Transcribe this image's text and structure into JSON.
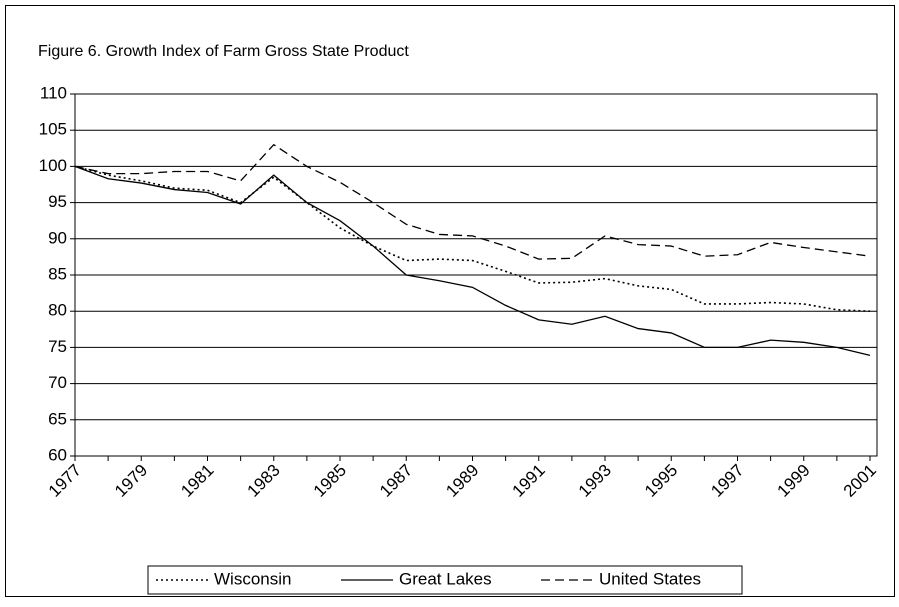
{
  "chart_data": {
    "type": "line",
    "title": "Figure 6.  Growth Index of Farm Gross State Product",
    "categories": [
      "1977",
      null,
      "1979",
      null,
      "1981",
      null,
      "1983",
      null,
      "1985",
      null,
      "1987",
      null,
      "1989",
      null,
      "1991",
      null,
      "1993",
      null,
      "1995",
      null,
      "1997",
      null,
      "1999",
      null,
      "2001"
    ],
    "series": [
      {
        "name": "Wisconsin",
        "color": "#000000",
        "style": "dotted",
        "values": [
          100,
          98.8,
          98,
          97,
          96.7,
          95,
          98.5,
          95,
          91.5,
          89,
          87,
          87.2,
          87,
          85.5,
          83.9,
          84,
          84.5,
          83.5,
          83,
          81,
          81,
          81.2,
          81,
          80.2,
          80
        ]
      },
      {
        "name": "Great Lakes",
        "color": "#000000",
        "style": "solid",
        "values": [
          100,
          98.3,
          97.7,
          96.8,
          96.4,
          94.8,
          98.8,
          95,
          92.5,
          89,
          85,
          84.2,
          83.3,
          80.8,
          78.8,
          78.2,
          79.3,
          77.6,
          77,
          75,
          75,
          76,
          75.7,
          75,
          73.9
        ]
      },
      {
        "name": "United States",
        "color": "#000000",
        "style": "dashed",
        "values": [
          100,
          99,
          99,
          99.3,
          99.3,
          98,
          103,
          100,
          97.8,
          95,
          92,
          90.6,
          90.4,
          89,
          87.2,
          87.3,
          90.4,
          89.2,
          89,
          87.6,
          87.8,
          89.5,
          88.8,
          88.2,
          87.6
        ]
      }
    ],
    "ylim": [
      60,
      110
    ],
    "yticks": [
      60,
      65,
      70,
      75,
      80,
      85,
      90,
      95,
      100,
      105,
      110
    ],
    "grid": true,
    "legend": "bottom"
  }
}
